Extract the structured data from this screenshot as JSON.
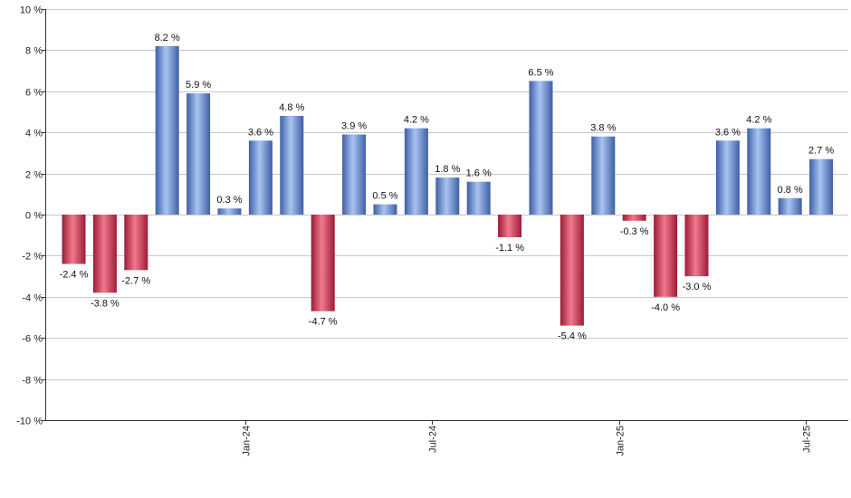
{
  "chart_data": {
    "type": "bar",
    "title": "",
    "xlabel": "",
    "ylabel": "",
    "ylim": [
      -10,
      10
    ],
    "yticks": [
      10,
      8,
      6,
      4,
      2,
      0,
      -2,
      -4,
      -6,
      -8,
      -10
    ],
    "ytick_labels": [
      "10 %",
      "8 %",
      "6 %",
      "4 %",
      "2 %",
      "0 %",
      "-2 %",
      "-4 %",
      "-6 %",
      "-8 %",
      "-10 %"
    ],
    "grid": true,
    "value_suffix": " %",
    "xtick_labels": [
      {
        "label": "Jan-24",
        "index": 5.5
      },
      {
        "label": "Jul-24",
        "index": 11.5
      },
      {
        "label": "Jan-25",
        "index": 17.5
      },
      {
        "label": "Jul-25",
        "index": 23.5
      }
    ],
    "values": [
      -2.4,
      -3.8,
      -2.7,
      8.2,
      5.9,
      0.3,
      3.6,
      4.8,
      -4.7,
      3.9,
      0.5,
      4.2,
      1.8,
      1.6,
      -1.1,
      6.5,
      -5.4,
      3.8,
      -0.3,
      -4.0,
      -3.0,
      3.6,
      4.2,
      0.8,
      2.7
    ],
    "labels": [
      "-2.4",
      "-3.8",
      "-2.7",
      "8.2",
      "5.9",
      "0.3",
      "3.6",
      "4.8",
      "-4.7",
      "3.9",
      "0.5",
      "4.2",
      "1.8",
      "1.6",
      "-1.1",
      "6.5",
      "-5.4",
      "3.8",
      "-0.3",
      "-4.0",
      "-3.0",
      "3.6",
      "4.2",
      "0.8",
      "2.7"
    ],
    "colors": {
      "positive_light": "#a9c4f2",
      "positive_dark": "#3f5fa6",
      "negative_light": "#f07a8c",
      "negative_dark": "#9c1c38",
      "grid": "#c8c8c8",
      "axis": "#333333"
    }
  }
}
